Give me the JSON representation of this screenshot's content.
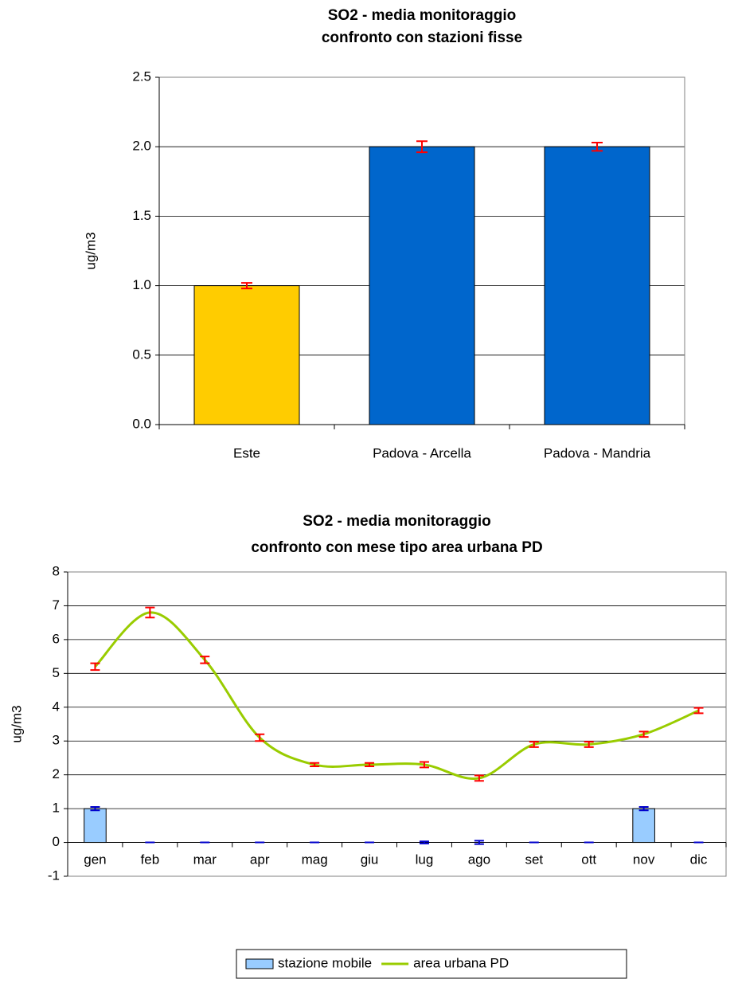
{
  "chart_data": [
    {
      "type": "bar",
      "title": [
        "SO2 - media monitoraggio",
        "confronto con stazioni fisse"
      ],
      "y_label": "ug/m3",
      "categories": [
        "Este",
        "Padova - Arcella",
        "Padova - Mandria"
      ],
      "values": [
        1,
        2,
        2
      ],
      "errors": [
        0.02,
        0.04,
        0.03
      ],
      "colors": [
        "#ffcc00",
        "#0066cc",
        "#0066cc"
      ],
      "error_color": "#ff0000",
      "ylim": [
        0,
        2.5
      ],
      "yticks": [
        {
          "value": 0,
          "label": "0.0"
        },
        0.5,
        {
          "value": 1,
          "label": "1.0"
        },
        1.5,
        {
          "value": 2,
          "label": "2.0"
        },
        2.5
      ],
      "grid": true
    },
    {
      "type": "combo",
      "title": [
        "SO2 - media monitoraggio",
        "confronto con mese tipo area urbana PD"
      ],
      "y_label": "ug/m3",
      "categories": [
        "gen",
        "feb",
        "mar",
        "apr",
        "mag",
        "giu",
        "lug",
        "ago",
        "set",
        "ott",
        "nov",
        "dic"
      ],
      "series": [
        {
          "name": "stazione mobile",
          "kind": "bar",
          "color": "#99ccff",
          "error_color": "#0000cc",
          "values": [
            1,
            0,
            0,
            0,
            0,
            0,
            0,
            0,
            0,
            0,
            1,
            0
          ],
          "errors": [
            0.05,
            0,
            0,
            0,
            0,
            0,
            0.03,
            0.05,
            0,
            0,
            0.05,
            0
          ]
        },
        {
          "name": "area urbana PD",
          "kind": "line",
          "color": "#99cc00",
          "error_color": "#ff0000",
          "values": [
            5.2,
            6.8,
            5.4,
            3.1,
            2.3,
            2.3,
            2.3,
            1.9,
            2.9,
            2.9,
            3.2,
            3.9
          ],
          "errors": [
            0.1,
            0.15,
            0.1,
            0.1,
            0.05,
            0.05,
            0.08,
            0.08,
            0.08,
            0.08,
            0.08,
            0.08
          ]
        }
      ],
      "ylim": [
        -1,
        8
      ],
      "yticks": [
        -1,
        0,
        1,
        2,
        3,
        4,
        5,
        6,
        7,
        8
      ],
      "grid": true,
      "legend": "bottom"
    }
  ]
}
